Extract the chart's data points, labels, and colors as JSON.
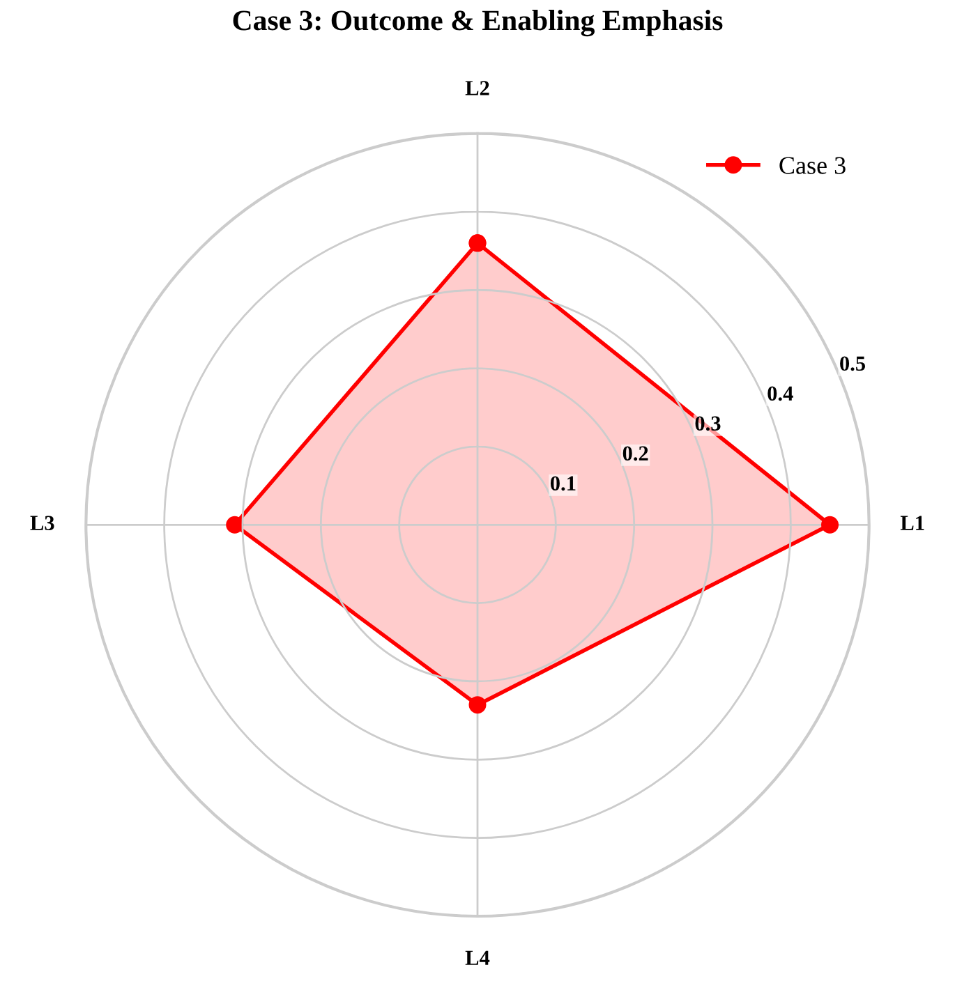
{
  "chart_data": {
    "type": "radar",
    "title": "Case 3: Outcome & Enabling Emphasis",
    "categories": [
      "L2",
      "L1",
      "L4",
      "L3"
    ],
    "series": [
      {
        "name": "Case 3",
        "color": "#ff0000",
        "values": [
          0.36,
          0.45,
          0.23,
          0.31
        ]
      }
    ],
    "ylim": [
      0,
      0.5
    ],
    "yticks": [
      0.1,
      0.2,
      0.3,
      0.4,
      0.5
    ],
    "grid": true,
    "legend": "top right",
    "marker": "circle",
    "line_style": "solid"
  }
}
